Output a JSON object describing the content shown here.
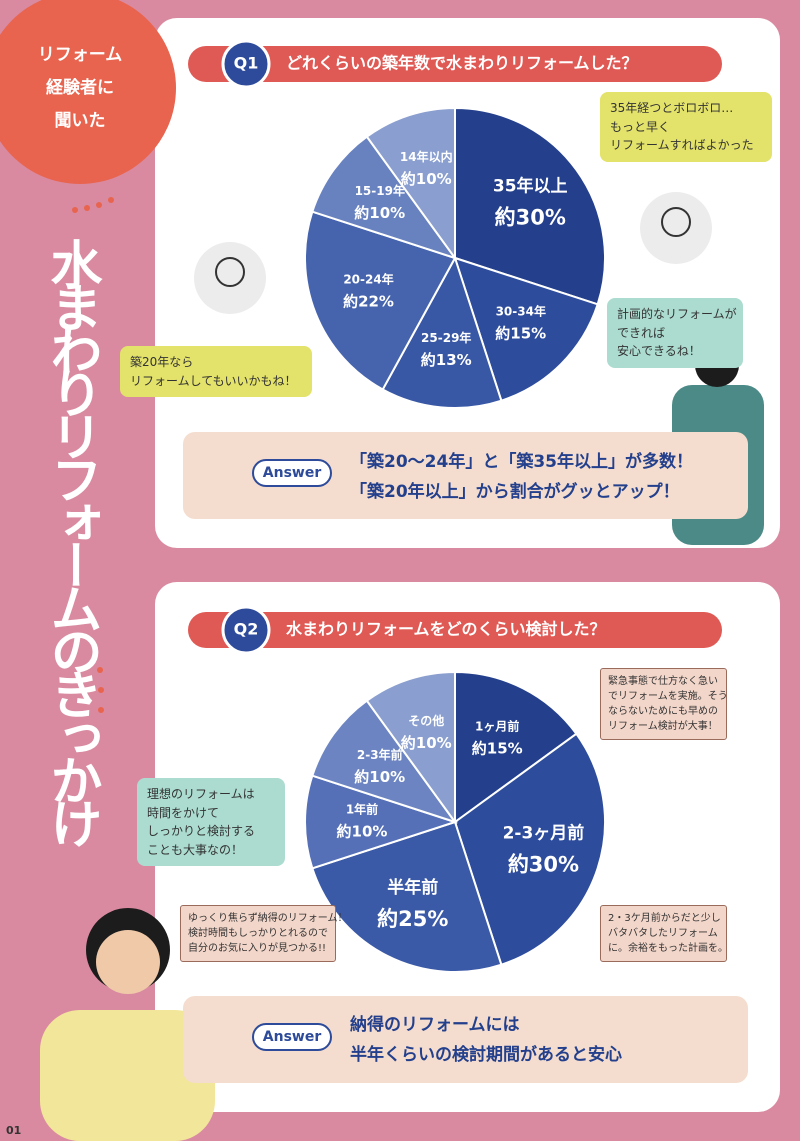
{
  "badge": [
    "リフォーム",
    "経験者に",
    "聞いた"
  ],
  "title": "水まわりリフォームのきっかけ",
  "page_number": "01",
  "chart_data": [
    {
      "type": "pie",
      "label": "Q1",
      "title": "どれくらいの築年数で水まわりリフォームした？",
      "categories": [
        "35年以上",
        "30-34年",
        "25-29年",
        "20-24年",
        "15-19年",
        "14年以内"
      ],
      "values": [
        30,
        15,
        13,
        22,
        10,
        10
      ],
      "value_labels": [
        "約30%",
        "約15%",
        "約13%",
        "約22%",
        "約10%",
        "約10%"
      ],
      "colors": [
        "#24408c",
        "#2d4c9c",
        "#3857a5",
        "#4664ae",
        "#6882c0",
        "#8a9fcf"
      ]
    },
    {
      "type": "pie",
      "label": "Q2",
      "title": "水まわりリフォームをどのくらい検討した？",
      "categories": [
        "1ヶ月前",
        "2-3ヶ月前",
        "半年前",
        "1年前",
        "2-3年前",
        "その他"
      ],
      "values": [
        15,
        30,
        25,
        10,
        10,
        10
      ],
      "value_labels": [
        "約15%",
        "約30%",
        "約25%",
        "約10%",
        "約10%",
        "約10%"
      ],
      "colors": [
        "#24408c",
        "#2d4c9c",
        "#3a59a7",
        "#5570b6",
        "#6c85c2",
        "#8a9fcf"
      ]
    }
  ],
  "q1": {
    "bubbles": [
      [
        "35年経つとボロボロ…",
        "もっと早く",
        "リフォームすればよかった"
      ],
      [
        "計画的なリフォームが",
        "できれば",
        "安心できるね！"
      ],
      [
        "築20年なら",
        "リフォームしてもいいかもね！"
      ]
    ],
    "answer_tag": "Answer",
    "answer": [
      "「築20〜24年」と「築35年以上」が多数！",
      "「築20年以上」から割合がグッとアップ！"
    ]
  },
  "q2": {
    "bubbles": [
      [
        "緊急事態で仕方なく急い",
        "でリフォームを実施。そう",
        "ならないためにも早めの",
        "リフォーム検討が大事！"
      ],
      [
        "2・3ケ月前からだと少し",
        "バタバタしたリフォーム",
        "に。余裕をもった計画を。"
      ],
      [
        "ゆっくり焦らず納得のリフォーム！",
        "検討時間もしっかりとれるので",
        "自分のお気に入りが見つかる!!"
      ],
      [
        "理想のリフォームは",
        "時間をかけて",
        "しっかりと検討する",
        "ことも大事なの！"
      ]
    ],
    "answer_tag": "Answer",
    "answer": [
      "納得のリフォームには",
      "半年くらいの検討期間があると安心"
    ]
  }
}
